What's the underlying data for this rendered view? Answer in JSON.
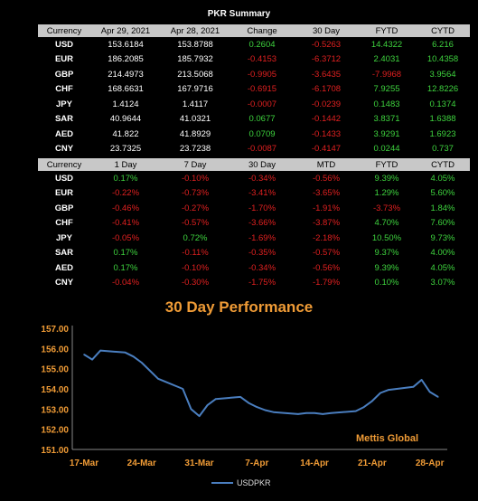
{
  "summary_title": "PKR Summary",
  "table1": {
    "headers": [
      "Currency",
      "Apr 29, 2021",
      "Apr 28, 2021",
      "Change",
      "30 Day",
      "FYTD",
      "CYTD"
    ],
    "rows": [
      {
        "currency": "USD",
        "values": [
          "153.6184",
          "153.8788",
          "0.2604",
          "-0.5263",
          "14.4322",
          "6.216"
        ]
      },
      {
        "currency": "EUR",
        "values": [
          "186.2085",
          "185.7932",
          "-0.4153",
          "-6.3712",
          "2.4031",
          "10.4358"
        ]
      },
      {
        "currency": "GBP",
        "values": [
          "214.4973",
          "213.5068",
          "-0.9905",
          "-3.6435",
          "-7.9968",
          "3.9564"
        ]
      },
      {
        "currency": "CHF",
        "values": [
          "168.6631",
          "167.9716",
          "-0.6915",
          "-6.1708",
          "7.9255",
          "12.8226"
        ]
      },
      {
        "currency": "JPY",
        "values": [
          "1.4124",
          "1.4117",
          "-0.0007",
          "-0.0239",
          "0.1483",
          "0.1374"
        ]
      },
      {
        "currency": "SAR",
        "values": [
          "40.9644",
          "41.0321",
          "0.0677",
          "-0.1442",
          "3.8371",
          "1.6388"
        ]
      },
      {
        "currency": "AED",
        "values": [
          "41.822",
          "41.8929",
          "0.0709",
          "-0.1433",
          "3.9291",
          "1.6923"
        ]
      },
      {
        "currency": "CNY",
        "values": [
          "23.7325",
          "23.7238",
          "-0.0087",
          "-0.4147",
          "0.0244",
          "0.737"
        ]
      }
    ]
  },
  "table2": {
    "headers": [
      "Currency",
      "1 Day",
      "7 Day",
      "30 Day",
      "MTD",
      "FYTD",
      "CYTD"
    ],
    "rows": [
      {
        "currency": "USD",
        "values": [
          "0.17%",
          "-0.10%",
          "-0.34%",
          "-0.56%",
          "9.39%",
          "4.05%"
        ]
      },
      {
        "currency": "EUR",
        "values": [
          "-0.22%",
          "-0.73%",
          "-3.41%",
          "-3.65%",
          "1.29%",
          "5.60%"
        ]
      },
      {
        "currency": "GBP",
        "values": [
          "-0.46%",
          "-0.27%",
          "-1.70%",
          "-1.91%",
          "-3.73%",
          "1.84%"
        ]
      },
      {
        "currency": "CHF",
        "values": [
          "-0.41%",
          "-0.57%",
          "-3.66%",
          "-3.87%",
          "4.70%",
          "7.60%"
        ]
      },
      {
        "currency": "JPY",
        "values": [
          "-0.05%",
          "0.72%",
          "-1.69%",
          "-2.18%",
          "10.50%",
          "9.73%"
        ]
      },
      {
        "currency": "SAR",
        "values": [
          "0.17%",
          "-0.11%",
          "-0.35%",
          "-0.57%",
          "9.37%",
          "4.00%"
        ]
      },
      {
        "currency": "AED",
        "values": [
          "0.17%",
          "-0.10%",
          "-0.34%",
          "-0.56%",
          "9.39%",
          "4.05%"
        ]
      },
      {
        "currency": "CNY",
        "values": [
          "-0.04%",
          "-0.30%",
          "-1.75%",
          "-1.79%",
          "0.10%",
          "3.07%"
        ]
      }
    ]
  },
  "chart_data": {
    "type": "line",
    "title": "30 Day Performance",
    "watermark": "Mettis Global",
    "legend": "USDPKR",
    "legend_position": "bottom",
    "series": [
      {
        "name": "USDPKR",
        "color": "#4a7ebf",
        "x": [
          "2021-03-17",
          "2021-03-18",
          "2021-03-19",
          "2021-03-22",
          "2021-03-23",
          "2021-03-24",
          "2021-03-25",
          "2021-03-26",
          "2021-03-29",
          "2021-03-30",
          "2021-03-31",
          "2021-04-01",
          "2021-04-02",
          "2021-04-05",
          "2021-04-06",
          "2021-04-07",
          "2021-04-08",
          "2021-04-09",
          "2021-04-12",
          "2021-04-13",
          "2021-04-14",
          "2021-04-15",
          "2021-04-16",
          "2021-04-19",
          "2021-04-20",
          "2021-04-21",
          "2021-04-22",
          "2021-04-23",
          "2021-04-26",
          "2021-04-27",
          "2021-04-28",
          "2021-04-29"
        ],
        "values": [
          155.7,
          155.45,
          155.9,
          155.8,
          155.6,
          155.3,
          154.9,
          154.5,
          154.0,
          153.0,
          152.65,
          153.2,
          153.5,
          153.6,
          153.3,
          153.1,
          152.95,
          152.85,
          152.75,
          152.8,
          152.8,
          152.75,
          152.8,
          152.9,
          153.1,
          153.4,
          153.8,
          153.95,
          154.1,
          154.45,
          153.85,
          153.6
        ]
      }
    ],
    "xticks": [
      "17-Mar",
      "24-Mar",
      "31-Mar",
      "7-Apr",
      "14-Apr",
      "21-Apr",
      "28-Apr"
    ],
    "ylim": [
      151.0,
      157.0
    ],
    "yticks": [
      "151.00",
      "152.00",
      "153.00",
      "154.00",
      "155.00",
      "156.00",
      "157.00"
    ],
    "grid": false
  }
}
